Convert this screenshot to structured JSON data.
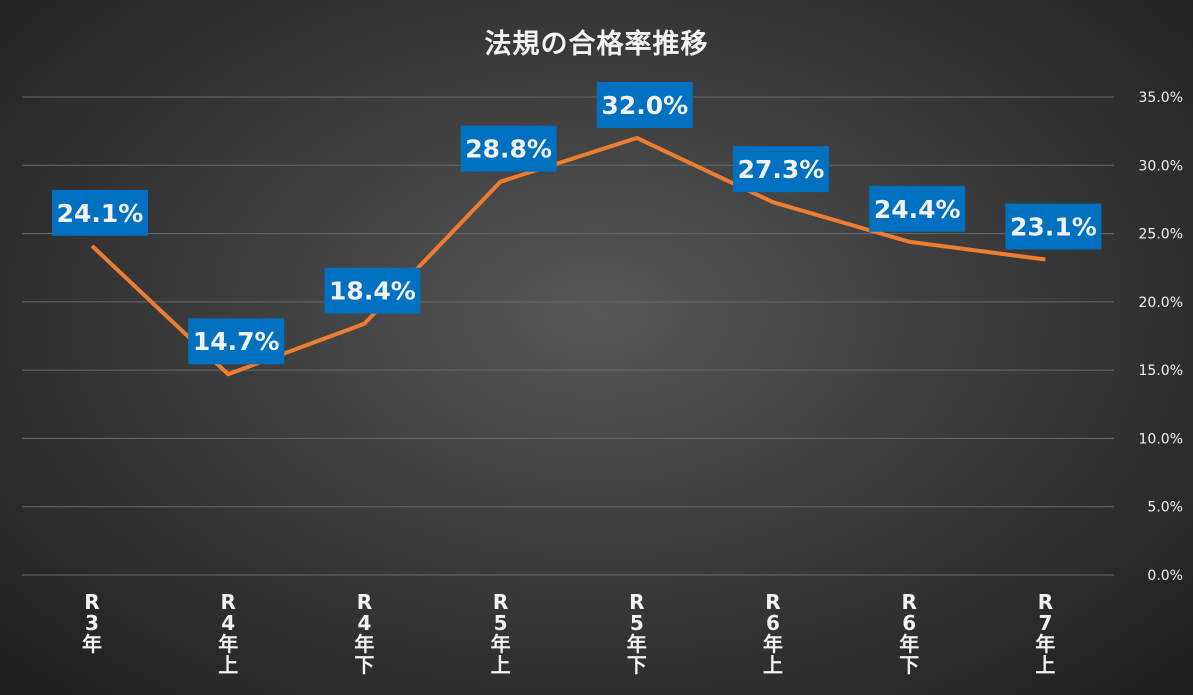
{
  "chart_data": {
    "type": "line",
    "title": "法規の合格率推移",
    "categories": [
      "R3年",
      "R4年上",
      "R4年下",
      "R5年上",
      "R5年下",
      "R6年上",
      "R6年下",
      "R7年上"
    ],
    "category_labels": [
      [
        "R",
        "3",
        "年"
      ],
      [
        "R",
        "4",
        "年",
        "上"
      ],
      [
        "R",
        "4",
        "年",
        "下"
      ],
      [
        "R",
        "5",
        "年",
        "上"
      ],
      [
        "R",
        "5",
        "年",
        "下"
      ],
      [
        "R",
        "6",
        "年",
        "上"
      ],
      [
        "R",
        "6",
        "年",
        "下"
      ],
      [
        "R",
        "7",
        "年",
        "上"
      ]
    ],
    "values": [
      24.1,
      14.7,
      18.4,
      28.8,
      32.0,
      27.3,
      24.4,
      23.1
    ],
    "data_labels": [
      "24.1%",
      "14.7%",
      "18.4%",
      "28.8%",
      "32.0%",
      "27.3%",
      "24.4%",
      "23.1%"
    ],
    "ylim": [
      0,
      35
    ],
    "y_ticks": [
      "0.0%",
      "5.0%",
      "10.0%",
      "15.0%",
      "20.0%",
      "25.0%",
      "30.0%",
      "35.0%"
    ],
    "y_axis_side": "right",
    "grid": true,
    "line_color": "#ED7D31",
    "label_bg_color": "#0070C0",
    "label_text_color": "#F2F2F2"
  }
}
